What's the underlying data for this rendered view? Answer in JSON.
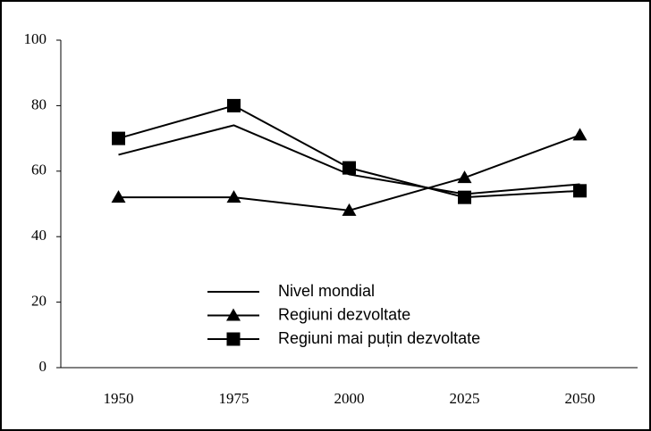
{
  "chart_data": {
    "type": "line",
    "categories": [
      "1950",
      "1975",
      "2000",
      "2025",
      "2050"
    ],
    "series": [
      {
        "name": "Nivel mondial",
        "color": "#000000",
        "marker": "none",
        "values": [
          65,
          74,
          59,
          53,
          56
        ]
      },
      {
        "name": "Regiuni dezvoltate",
        "color": "#000000",
        "marker": "triangle",
        "values": [
          52,
          52,
          48,
          58,
          71
        ]
      },
      {
        "name": "Regiuni mai puțin dezvoltate",
        "color": "#000000",
        "marker": "square",
        "values": [
          70,
          80,
          61,
          52,
          54
        ]
      }
    ],
    "ylim": [
      0,
      100
    ],
    "yticks": [
      0,
      20,
      40,
      60,
      80,
      100
    ],
    "grid": false,
    "legend_position": "lower center"
  }
}
